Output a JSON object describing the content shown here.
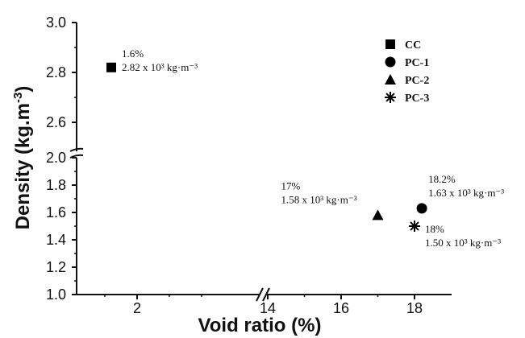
{
  "chart_data": {
    "type": "scatter",
    "xlabel": "Void ratio (%)",
    "ylabel": "Density (kg.m-3)",
    "x_ticks_left": [
      "2"
    ],
    "x_ticks_right": [
      "14",
      "16",
      "18"
    ],
    "y_ticks_upper": [
      "2.0",
      "2.6",
      "2.8",
      "3.0"
    ],
    "y_ticks_lower": [
      "1.0",
      "1.2",
      "1.4",
      "1.6",
      "1.8"
    ],
    "series": [
      {
        "name": "CC",
        "marker": "square",
        "x": 1.6,
        "y": 2.82,
        "label_pct": "1.6%",
        "label_density": "2.82 x 10³ kg·m⁻³"
      },
      {
        "name": "PC-1",
        "marker": "circle",
        "x": 18.2,
        "y": 1.63,
        "label_pct": "18.2%",
        "label_density": "1.63 x 10³ kg·m⁻³"
      },
      {
        "name": "PC-2",
        "marker": "triangle",
        "x": 17,
        "y": 1.58,
        "label_pct": "17%",
        "label_density": "1.58 x 10³ kg·m⁻³"
      },
      {
        "name": "PC-3",
        "marker": "asterisk",
        "x": 18,
        "y": 1.5,
        "label_pct": "18%",
        "label_density": "1.50 x 10³ kg·m⁻³"
      }
    ],
    "legend_position": "top-right"
  }
}
